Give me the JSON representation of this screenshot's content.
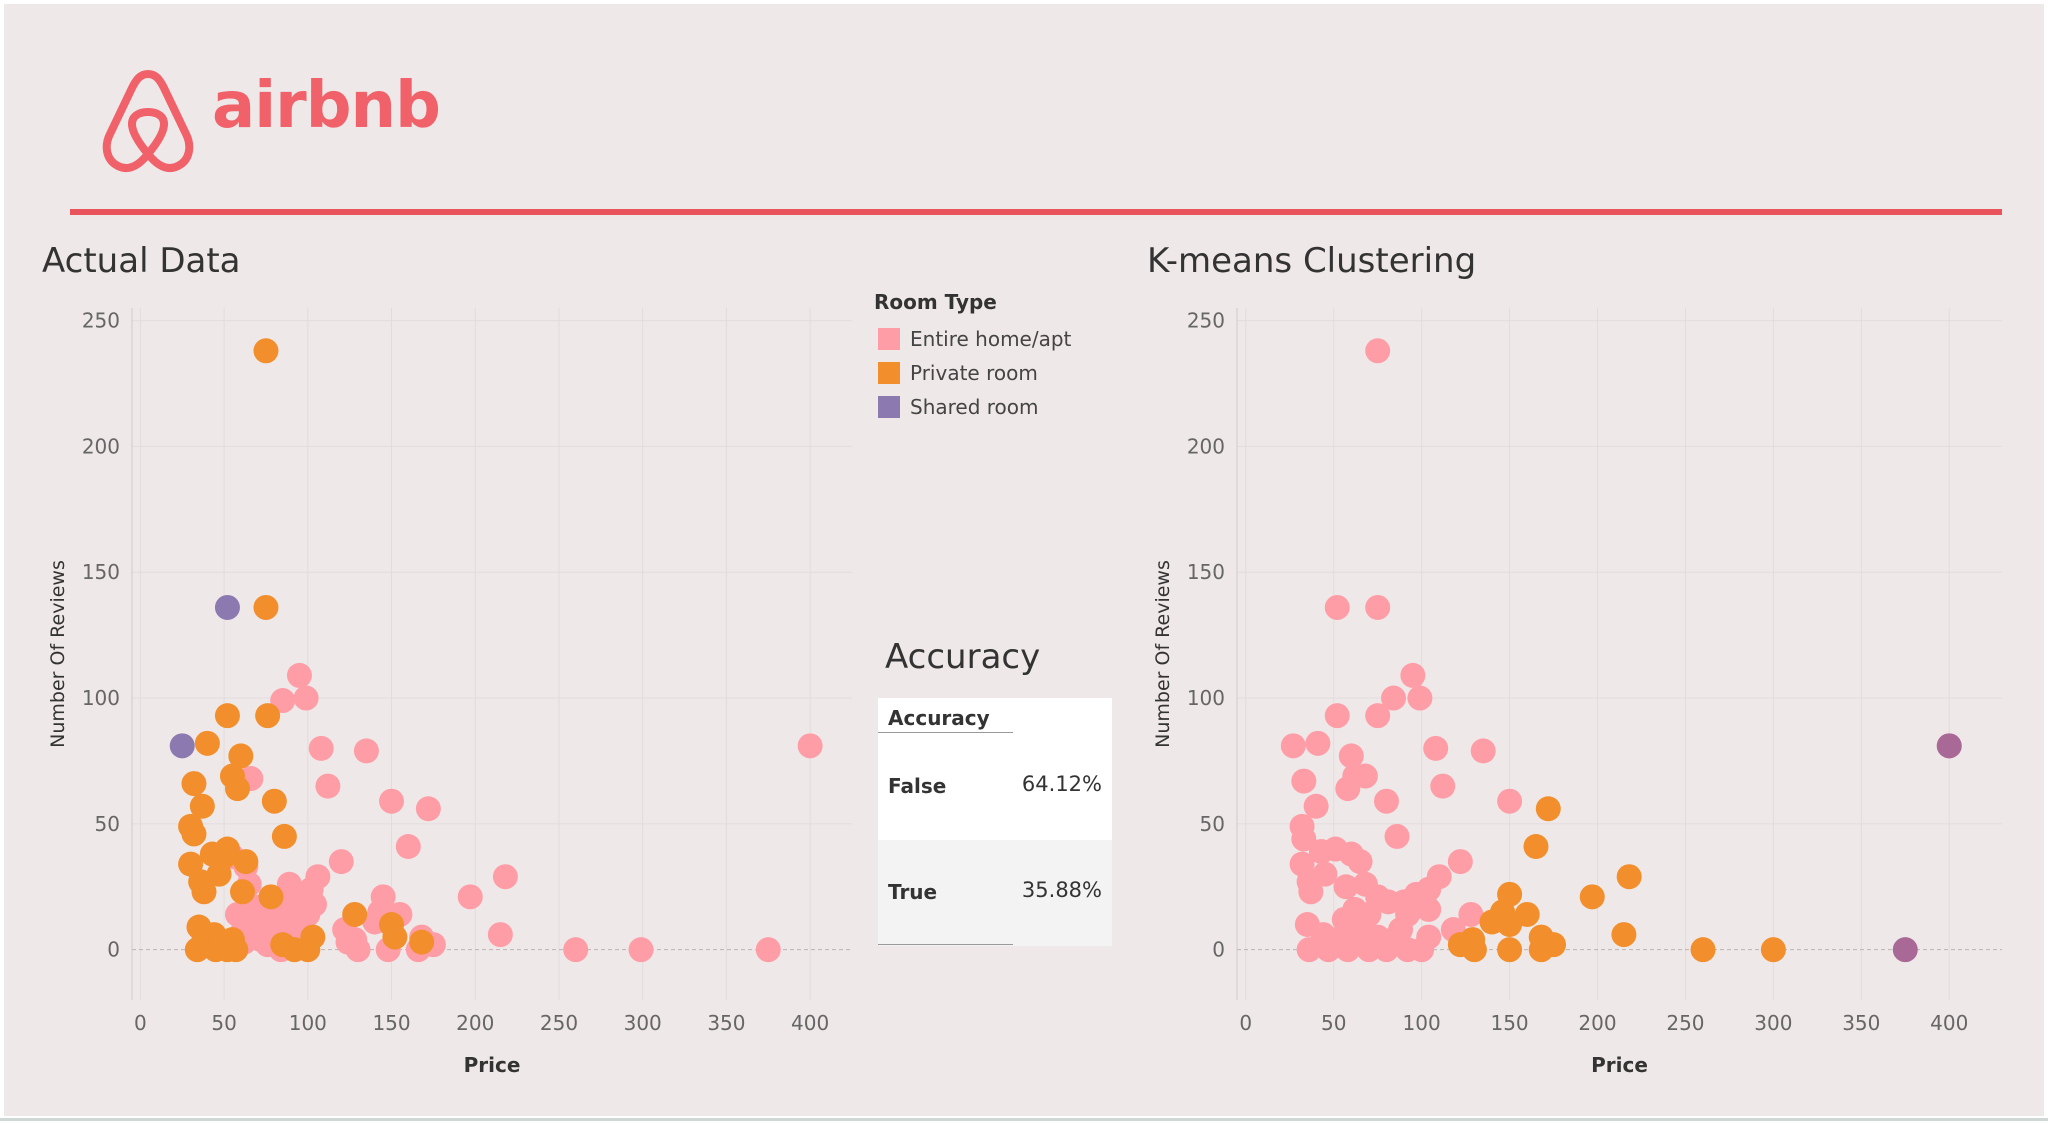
{
  "brand": {
    "wordmark": "airbnb",
    "color": "#f0616a"
  },
  "titles": {
    "left": "Actual Data",
    "right": "K-means Clustering"
  },
  "legend": {
    "title": "Room Type",
    "items": [
      {
        "label": "Entire home/apt",
        "color": "#ff9da7"
      },
      {
        "label": "Private room",
        "color": "#f28e2b"
      },
      {
        "label": "Shared room",
        "color": "#8b79b0"
      }
    ]
  },
  "accuracy": {
    "heading": "Accuracy",
    "column_header": "Accuracy",
    "rows": [
      {
        "label": "False",
        "value": "64.12%"
      },
      {
        "label": "True",
        "value": "35.88%"
      }
    ]
  },
  "chart_data": [
    {
      "type": "scatter",
      "title": "Actual Data",
      "xlabel": "Price",
      "ylabel": "Number Of Reviews",
      "xlim": [
        -5,
        425
      ],
      "ylim": [
        -20,
        255
      ],
      "xticks": [
        0,
        50,
        100,
        150,
        200,
        250,
        300,
        350,
        400
      ],
      "yticks": [
        0,
        50,
        100,
        150,
        200,
        250
      ],
      "grid": true,
      "series": [
        {
          "name": "Entire home/apt",
          "color": "#ff9da7",
          "points": [
            [
              55,
              37
            ],
            [
              58,
              14
            ],
            [
              60,
              6
            ],
            [
              62,
              3
            ],
            [
              63,
              33
            ],
            [
              65,
              26
            ],
            [
              66,
              68
            ],
            [
              68,
              17
            ],
            [
              70,
              10
            ],
            [
              72,
              4
            ],
            [
              74,
              8
            ],
            [
              76,
              2
            ],
            [
              78,
              18
            ],
            [
              80,
              12
            ],
            [
              82,
              6
            ],
            [
              84,
              0
            ],
            [
              86,
              20
            ],
            [
              88,
              14
            ],
            [
              89,
              26
            ],
            [
              90,
              5
            ],
            [
              92,
              10
            ],
            [
              94,
              16
            ],
            [
              95,
              109
            ],
            [
              97,
              22
            ],
            [
              98,
              19
            ],
            [
              99,
              100
            ],
            [
              100,
              14
            ],
            [
              102,
              24
            ],
            [
              104,
              18
            ],
            [
              106,
              29
            ],
            [
              108,
              80
            ],
            [
              112,
              65
            ],
            [
              120,
              35
            ],
            [
              122,
              8
            ],
            [
              124,
              3
            ],
            [
              128,
              4
            ],
            [
              130,
              0
            ],
            [
              135,
              79
            ],
            [
              140,
              11
            ],
            [
              143,
              15
            ],
            [
              145,
              21
            ],
            [
              148,
              0
            ],
            [
              150,
              59
            ],
            [
              155,
              14
            ],
            [
              160,
              41
            ],
            [
              166,
              0
            ],
            [
              168,
              5
            ],
            [
              172,
              56
            ],
            [
              175,
              2
            ],
            [
              197,
              21
            ],
            [
              215,
              6
            ],
            [
              218,
              29
            ],
            [
              260,
              0
            ],
            [
              299,
              0
            ],
            [
              375,
              0
            ],
            [
              400,
              81
            ],
            [
              85,
              99
            ]
          ]
        },
        {
          "name": "Private room",
          "color": "#f28e2b",
          "points": [
            [
              75,
              238
            ],
            [
              75,
              136
            ],
            [
              52,
              93
            ],
            [
              76,
              93
            ],
            [
              40,
              82
            ],
            [
              60,
              77
            ],
            [
              32,
              66
            ],
            [
              55,
              69
            ],
            [
              58,
              64
            ],
            [
              37,
              57
            ],
            [
              80,
              59
            ],
            [
              30,
              49
            ],
            [
              32,
              46
            ],
            [
              86,
              45
            ],
            [
              52,
              40
            ],
            [
              43,
              38
            ],
            [
              30,
              34
            ],
            [
              50,
              37
            ],
            [
              47,
              30
            ],
            [
              36,
              27
            ],
            [
              38,
              23
            ],
            [
              61,
              23
            ],
            [
              63,
              35
            ],
            [
              78,
              21
            ],
            [
              35,
              9
            ],
            [
              38,
              4
            ],
            [
              34,
              0
            ],
            [
              44,
              6
            ],
            [
              45,
              0
            ],
            [
              48,
              2
            ],
            [
              52,
              0
            ],
            [
              55,
              4
            ],
            [
              57,
              0
            ],
            [
              85,
              2
            ],
            [
              92,
              0
            ],
            [
              100,
              0
            ],
            [
              103,
              5
            ],
            [
              128,
              14
            ],
            [
              150,
              10
            ],
            [
              152,
              5
            ],
            [
              168,
              3
            ]
          ]
        },
        {
          "name": "Shared room",
          "color": "#8b79b0",
          "points": [
            [
              52,
              136
            ],
            [
              25,
              81
            ]
          ]
        }
      ]
    },
    {
      "type": "scatter",
      "title": "K-means Clustering",
      "xlabel": "Price",
      "ylabel": "Number Of Reviews",
      "xlim": [
        -5,
        430
      ],
      "ylim": [
        -20,
        255
      ],
      "xticks": [
        0,
        50,
        100,
        150,
        200,
        250,
        300,
        350,
        400
      ],
      "yticks": [
        0,
        50,
        100,
        150,
        200,
        250
      ],
      "grid": true,
      "series": [
        {
          "color": "#ff9da7",
          "points": [
            [
              75,
              238
            ],
            [
              52,
              136
            ],
            [
              75,
              136
            ],
            [
              52,
              93
            ],
            [
              75,
              93
            ],
            [
              84,
              100
            ],
            [
              95,
              109
            ],
            [
              99,
              100
            ],
            [
              27,
              81
            ],
            [
              41,
              82
            ],
            [
              108,
              80
            ],
            [
              135,
              79
            ],
            [
              60,
              77
            ],
            [
              33,
              67
            ],
            [
              62,
              69
            ],
            [
              68,
              69
            ],
            [
              112,
              65
            ],
            [
              58,
              64
            ],
            [
              40,
              57
            ],
            [
              80,
              59
            ],
            [
              150,
              59
            ],
            [
              32,
              49
            ],
            [
              33,
              44
            ],
            [
              86,
              45
            ],
            [
              51,
              40
            ],
            [
              43,
              39
            ],
            [
              32,
              34
            ],
            [
              60,
              38
            ],
            [
              65,
              35
            ],
            [
              45,
              30
            ],
            [
              36,
              27
            ],
            [
              37,
              23
            ],
            [
              57,
              25
            ],
            [
              68,
              26
            ],
            [
              75,
              21
            ],
            [
              122,
              35
            ],
            [
              110,
              29
            ],
            [
              104,
              24
            ],
            [
              97,
              22
            ],
            [
              90,
              19
            ],
            [
              81,
              19
            ],
            [
              62,
              16
            ],
            [
              70,
              14
            ],
            [
              56,
              12
            ],
            [
              92,
              14
            ],
            [
              128,
              14
            ],
            [
              35,
              10
            ],
            [
              104,
              16
            ],
            [
              118,
              8
            ],
            [
              88,
              8
            ],
            [
              64,
              8
            ],
            [
              44,
              6
            ],
            [
              75,
              5
            ],
            [
              104,
              5
            ],
            [
              36,
              0
            ],
            [
              47,
              0
            ],
            [
              58,
              0
            ],
            [
              63,
              3
            ],
            [
              70,
              0
            ],
            [
              80,
              0
            ],
            [
              92,
              0
            ],
            [
              100,
              0
            ],
            [
              84,
              4
            ],
            [
              52,
              4
            ],
            [
              400,
              81
            ]
          ]
        },
        {
          "color": "#f28e2b",
          "points": [
            [
              172,
              56
            ],
            [
              165,
              41
            ],
            [
              218,
              29
            ],
            [
              150,
              22
            ],
            [
              197,
              21
            ],
            [
              146,
              15
            ],
            [
              140,
              11
            ],
            [
              160,
              14
            ],
            [
              215,
              6
            ],
            [
              150,
              10
            ],
            [
              168,
              5
            ],
            [
              129,
              4
            ],
            [
              122,
              2
            ],
            [
              175,
              2
            ],
            [
              130,
              0
            ],
            [
              150,
              0
            ],
            [
              168,
              0
            ],
            [
              260,
              0
            ],
            [
              300,
              0
            ]
          ]
        },
        {
          "color": "#a86996",
          "points": [
            [
              400,
              81
            ],
            [
              375,
              0
            ]
          ]
        }
      ]
    }
  ]
}
